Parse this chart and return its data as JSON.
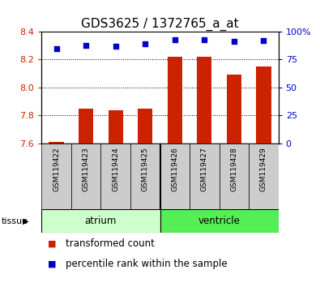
{
  "title": "GDS3625 / 1372765_a_at",
  "samples": [
    "GSM119422",
    "GSM119423",
    "GSM119424",
    "GSM119425",
    "GSM119426",
    "GSM119427",
    "GSM119428",
    "GSM119429"
  ],
  "bar_values": [
    7.61,
    7.85,
    7.84,
    7.85,
    8.22,
    8.22,
    8.09,
    8.15
  ],
  "bar_baseline": 7.6,
  "percentile_values": [
    85,
    88,
    87,
    89,
    93,
    93,
    91,
    92
  ],
  "ylim_left": [
    7.6,
    8.4
  ],
  "ylim_right": [
    0,
    100
  ],
  "yticks_left": [
    7.6,
    7.8,
    8.0,
    8.2,
    8.4
  ],
  "yticks_right": [
    0,
    25,
    50,
    75,
    100
  ],
  "ytick_labels_right": [
    "0",
    "25",
    "50",
    "75",
    "100%"
  ],
  "bar_color": "#cc2200",
  "dot_color": "#0000cc",
  "tissue_groups": [
    {
      "label": "atrium",
      "start": 0,
      "end": 3,
      "color": "#ccffcc"
    },
    {
      "label": "ventricle",
      "start": 4,
      "end": 7,
      "color": "#55ee55"
    }
  ],
  "sample_label_bg": "#cccccc",
  "tissue_label": "tissue",
  "legend_items": [
    {
      "label": "transformed count",
      "color": "#cc2200"
    },
    {
      "label": "percentile rank within the sample",
      "color": "#0000cc"
    }
  ],
  "bg_color": "#ffffff",
  "tick_label_color_left": "#cc2200",
  "tick_label_color_right": "#0000cc",
  "title_fontsize": 11,
  "axis_fontsize": 8,
  "legend_fontsize": 8.5,
  "sample_fontsize": 6.5
}
